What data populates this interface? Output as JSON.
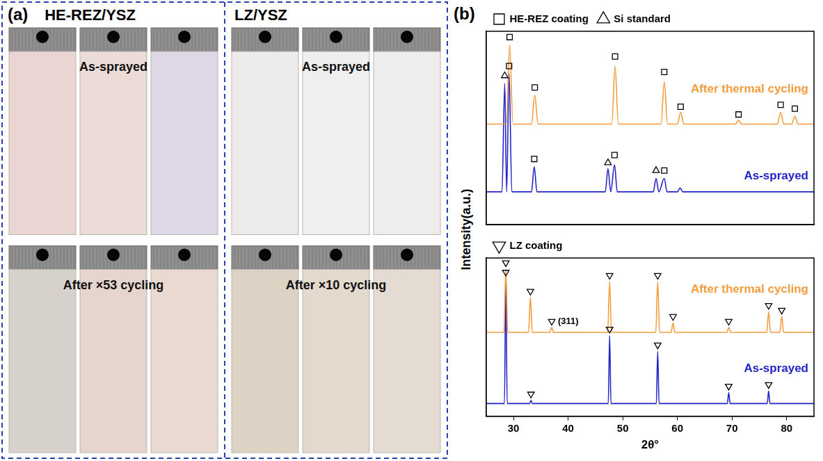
{
  "panel_a": {
    "letter": "(a)",
    "groups": [
      {
        "title": "HE-REZ/YSZ",
        "rows": [
          {
            "label": "As-sprayed",
            "colors": [
              "#e9d6d2",
              "#ecdcd8",
              "#ddd7e6"
            ]
          },
          {
            "label": "After ×53 cycling",
            "colors": [
              "#d7d1cc",
              "#e6d5ce",
              "#e9d9d1"
            ]
          }
        ]
      },
      {
        "title": "LZ/YSZ",
        "rows": [
          {
            "label": "As-sprayed",
            "colors": [
              "#ececec",
              "#efefef",
              "#ededed"
            ]
          },
          {
            "label": "After ×10 cycling",
            "colors": [
              "#ddd3c5",
              "#e3d9cc",
              "#e4dcd2"
            ]
          }
        ]
      }
    ]
  },
  "panel_b": {
    "letter": "(b)",
    "y_label": "Intensity(a.u.)"
  },
  "chart_data": [
    {
      "type": "line",
      "tick_labels": false,
      "grid": false,
      "legend": "top",
      "xlim": [
        25,
        85
      ],
      "ylim": [
        0,
        100
      ],
      "series": [
        {
          "name": "After thermal cycling",
          "type": "line",
          "color": "#f39c3c",
          "x": [
            25,
            28.7,
            29.3,
            29.9,
            33.3,
            33.9,
            34.5,
            48.0,
            48.6,
            49.2,
            57.0,
            57.6,
            58.2,
            60.0,
            60.6,
            61.2,
            70.6,
            71.2,
            71.8,
            78.3,
            78.9,
            79.5,
            80.9,
            81.5,
            82.1,
            85
          ],
          "values": [
            52,
            52,
            93,
            52,
            52,
            67,
            52,
            52,
            82,
            52,
            52,
            74,
            52,
            52,
            58,
            52,
            52,
            54,
            52,
            52,
            58,
            52,
            52,
            56,
            52,
            52
          ]
        },
        {
          "name": "As-sprayed",
          "type": "line",
          "color": "#2323c8",
          "x": [
            25,
            27.9,
            28.4,
            28.75,
            29.2,
            29.7,
            33.3,
            33.8,
            34.3,
            46.8,
            47.3,
            47.8,
            48.5,
            49.0,
            55.6,
            56.1,
            56.6,
            57.6,
            58.1,
            60.0,
            60.5,
            61.0,
            85
          ],
          "values": [
            17,
            17,
            73,
            17,
            78,
            17,
            17,
            30,
            17,
            17,
            29,
            17,
            31,
            17,
            17,
            24,
            17,
            24,
            17,
            17,
            19,
            17,
            17
          ]
        },
        {
          "name": "HE-REZ coating",
          "type": "scatter",
          "marker": "square",
          "color": "#000000",
          "x": [
            29.3,
            33.9,
            48.6,
            57.6,
            60.6,
            71.2,
            78.9,
            81.5,
            29.2,
            33.8,
            48.5,
            57.6
          ],
          "values": [
            97,
            71,
            87,
            79,
            61,
            57,
            62,
            60,
            82,
            34,
            36,
            28
          ]
        },
        {
          "name": "Si standard",
          "type": "scatter",
          "marker": "triangle",
          "color": "#000000",
          "x": [
            28.4,
            47.3,
            56.1
          ],
          "values": [
            77,
            32,
            28
          ]
        }
      ]
    },
    {
      "type": "line",
      "tick_labels": "x",
      "grid": false,
      "legend": "top",
      "x_label": "2θ°",
      "xlim": [
        25,
        85
      ],
      "xticks": [
        30,
        40,
        50,
        60,
        70,
        80
      ],
      "ylim": [
        0,
        100
      ],
      "series": [
        {
          "name": "After thermal cycling",
          "type": "line",
          "color": "#f39c3c",
          "x": [
            25,
            28.25,
            28.6,
            28.95,
            32.75,
            33.1,
            33.45,
            36.65,
            37.0,
            37.35,
            47.25,
            47.6,
            47.95,
            56.05,
            56.4,
            56.75,
            58.85,
            59.2,
            59.55,
            69.05,
            69.4,
            69.75,
            76.35,
            76.7,
            77.05,
            78.75,
            79.1,
            79.45,
            85
          ],
          "values": [
            53,
            53,
            93,
            53,
            53,
            75,
            53,
            53,
            56,
            53,
            53,
            85,
            53,
            53,
            85,
            53,
            53,
            59,
            53,
            53,
            56,
            53,
            53,
            66,
            53,
            53,
            63,
            53,
            53
          ]
        },
        {
          "name": "As-sprayed",
          "type": "line",
          "color": "#2323c8",
          "x": [
            25,
            28.35,
            28.6,
            28.85,
            32.95,
            33.2,
            33.45,
            47.35,
            47.6,
            47.85,
            56.15,
            56.4,
            56.65,
            69.15,
            69.4,
            69.65,
            76.45,
            76.7,
            76.95,
            85
          ],
          "values": [
            8,
            8,
            88,
            8,
            8,
            10,
            8,
            8,
            51,
            8,
            8,
            41,
            8,
            8,
            15,
            8,
            8,
            16,
            8,
            8
          ]
        },
        {
          "name": "LZ coating",
          "type": "scatter",
          "marker": "triangle-down",
          "color": "#000000",
          "x": [
            28.6,
            33.1,
            37.0,
            47.6,
            56.4,
            59.2,
            69.4,
            76.7,
            79.1,
            28.6,
            33.2,
            47.6,
            56.4,
            69.4,
            76.7
          ],
          "values": [
            97,
            79,
            60,
            89,
            89,
            63,
            60,
            70,
            67,
            91,
            14,
            55,
            45,
            19,
            20
          ]
        }
      ],
      "annotations": [
        {
          "text": "(311)",
          "x": 37.0
        }
      ]
    }
  ]
}
